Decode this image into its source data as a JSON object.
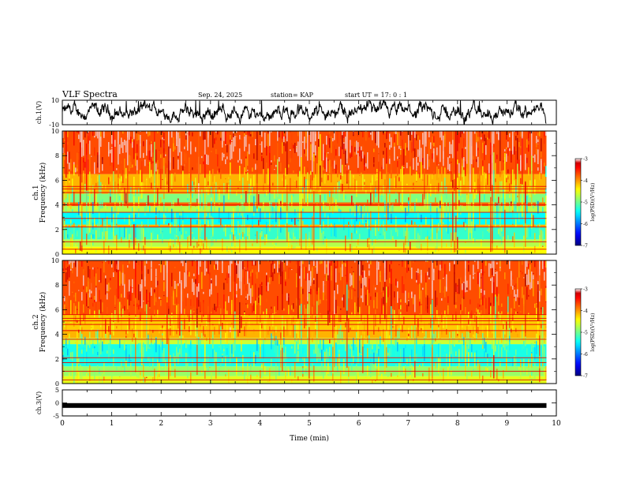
{
  "header": {
    "title": "VLF Spectra",
    "date": "Sep. 24, 2025",
    "station": "station= KAP",
    "start": "start  UT =   17: 0  : 1"
  },
  "chart_data": [
    {
      "type": "line",
      "name": "ch1-waveform",
      "ylabel": "ch.1(V)",
      "ylim": [
        -10,
        10
      ],
      "yticks": [
        "10",
        "-10"
      ],
      "xlim": [
        0,
        10
      ],
      "series": [
        {
          "name": "ch.1",
          "color": "#000000",
          "note": "broadband noisy trace around 0 V, amplitude mostly between -5 and +9 V"
        }
      ]
    },
    {
      "type": "heatmap",
      "name": "ch1-spectrogram",
      "ylabel": "ch.1\nFrequency (kHz)",
      "ylabel_lines": [
        "ch.1",
        "Frequency (kHz)"
      ],
      "ylim": [
        0,
        10
      ],
      "yticks": [
        "0",
        "2",
        "4",
        "6",
        "8",
        "10"
      ],
      "xlim": [
        0,
        9.8
      ],
      "bands": [
        {
          "from": 0,
          "to": 0.6,
          "level": -4.5
        },
        {
          "from": 0.6,
          "to": 1.2,
          "level": -4.8
        },
        {
          "from": 1.2,
          "to": 2.2,
          "level": -5.3
        },
        {
          "from": 2.2,
          "to": 2.4,
          "level": -4.2
        },
        {
          "from": 2.4,
          "to": 3.4,
          "level": -5.5
        },
        {
          "from": 3.4,
          "to": 3.9,
          "level": -4.8
        },
        {
          "from": 3.9,
          "to": 4.2,
          "level": -3.9
        },
        {
          "from": 4.2,
          "to": 4.9,
          "level": -5.0
        },
        {
          "from": 4.9,
          "to": 6.5,
          "level": -4.2
        },
        {
          "from": 6.5,
          "to": 10,
          "level": -3.8
        }
      ],
      "lines_khz": [
        0.4,
        1.0,
        2.2,
        2.9,
        3.4,
        4.0,
        5.0,
        5.3,
        5.5
      ]
    },
    {
      "type": "heatmap",
      "name": "ch2-spectrogram",
      "ylabel": "ch.2\nFrequency (kHz)",
      "ylabel_lines": [
        "ch.2",
        "Frequency (kHz)"
      ],
      "ylim": [
        0,
        10
      ],
      "yticks": [
        "0",
        "2",
        "4",
        "6",
        "8",
        "10"
      ],
      "xlim": [
        0,
        9.8
      ],
      "bands": [
        {
          "from": 0,
          "to": 0.6,
          "level": -4.6
        },
        {
          "from": 0.6,
          "to": 1.4,
          "level": -4.9
        },
        {
          "from": 1.4,
          "to": 3.2,
          "level": -5.4
        },
        {
          "from": 3.2,
          "to": 3.7,
          "level": -4.7
        },
        {
          "from": 3.7,
          "to": 4.4,
          "level": -4.2
        },
        {
          "from": 4.4,
          "to": 5.6,
          "level": -4.3
        },
        {
          "from": 5.6,
          "to": 10,
          "level": -3.8
        }
      ],
      "lines_khz": [
        0.3,
        1.0,
        1.7,
        2.1,
        3.6,
        4.3,
        4.8,
        5.1,
        5.3,
        5.6
      ]
    },
    {
      "type": "line",
      "name": "ch3-waveform",
      "ylabel": "ch.3(V)",
      "ylim": [
        -5,
        5
      ],
      "yticks": [
        "5",
        "0",
        "-5"
      ],
      "xlim": [
        0,
        10
      ],
      "xlabel": "Time (min)",
      "xticks": [
        "0",
        "1",
        "2",
        "3",
        "4",
        "5",
        "6",
        "7",
        "8",
        "9",
        "10"
      ],
      "series": [
        {
          "name": "ch.3",
          "color": "#000000",
          "note": "thick flat band around -1 V across full duration"
        }
      ],
      "band_center": -1.0
    }
  ],
  "colorbars": [
    {
      "name": "ch1-colorbar",
      "label": "log(PSD)(V²/Hz)",
      "range": [
        -7,
        -3
      ],
      "ticks": [
        "-3",
        "-4",
        "-5",
        "-6",
        "-7"
      ]
    },
    {
      "name": "ch2-colorbar",
      "label": "log(PSD)(V²/Hz)",
      "range": [
        -7,
        -3
      ],
      "ticks": [
        "-3",
        "-4",
        "-5",
        "-6",
        "-7"
      ]
    }
  ]
}
